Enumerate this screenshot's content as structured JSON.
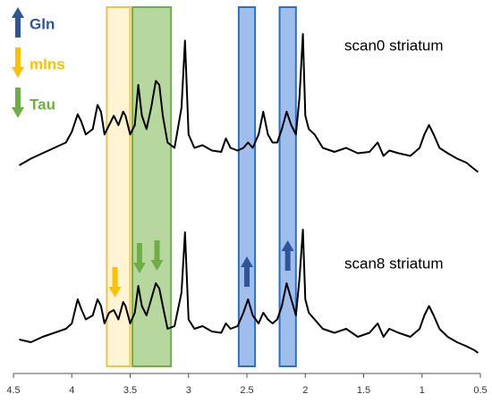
{
  "chart_data": {
    "type": "line",
    "x": [
      4.45,
      4.35,
      4.25,
      4.15,
      4.05,
      4.0,
      3.95,
      3.92,
      3.88,
      3.82,
      3.78,
      3.75,
      3.72,
      3.68,
      3.64,
      3.6,
      3.56,
      3.54,
      3.5,
      3.46,
      3.43,
      3.4,
      3.36,
      3.32,
      3.28,
      3.25,
      3.22,
      3.18,
      3.12,
      3.06,
      3.03,
      3.0,
      2.95,
      2.88,
      2.8,
      2.72,
      2.68,
      2.64,
      2.58,
      2.53,
      2.49,
      2.45,
      2.4,
      2.36,
      2.32,
      2.28,
      2.24,
      2.2,
      2.16,
      2.12,
      2.08,
      2.05,
      2.02,
      2.0,
      1.97,
      1.92,
      1.85,
      1.75,
      1.65,
      1.55,
      1.45,
      1.38,
      1.33,
      1.28,
      1.2,
      1.1,
      1.02,
      0.98,
      0.94,
      0.9,
      0.85,
      0.78,
      0.7,
      0.62,
      0.55,
      0.52
    ],
    "series": [
      {
        "name": "scan0 striatum",
        "color": "#000000",
        "values": [
          10,
          15,
          19,
          23,
          27,
          35,
          48,
          43,
          33,
          37,
          55,
          50,
          33,
          40,
          47,
          40,
          50,
          47,
          33,
          40,
          70,
          47,
          37,
          53,
          73,
          70,
          47,
          27,
          23,
          53,
          103,
          33,
          23,
          25,
          21,
          20,
          30,
          23,
          21,
          23,
          27,
          23,
          33,
          50,
          33,
          27,
          27,
          37,
          50,
          40,
          33,
          60,
          108,
          47,
          37,
          33,
          23,
          20,
          23,
          19,
          20,
          27,
          17,
          21,
          19,
          17,
          23,
          33,
          40,
          33,
          23,
          19,
          15,
          12,
          7,
          5
        ]
      },
      {
        "name": "scan8 striatum",
        "color": "#000000",
        "values": [
          10,
          8,
          12,
          15,
          18,
          22,
          40,
          33,
          25,
          28,
          40,
          35,
          22,
          30,
          32,
          25,
          38,
          35,
          22,
          30,
          50,
          35,
          28,
          40,
          52,
          48,
          35,
          18,
          20,
          45,
          90,
          25,
          18,
          20,
          16,
          15,
          22,
          18,
          20,
          30,
          40,
          28,
          22,
          30,
          25,
          22,
          25,
          35,
          52,
          40,
          28,
          55,
          92,
          40,
          30,
          25,
          18,
          15,
          18,
          12,
          15,
          22,
          12,
          18,
          15,
          12,
          18,
          28,
          35,
          28,
          18,
          12,
          8,
          5,
          2,
          0
        ]
      }
    ],
    "xlim": [
      4.5,
      0.5
    ],
    "xticks": [
      4.5,
      4,
      3.5,
      3,
      2.5,
      2,
      1.5,
      1,
      0.5
    ],
    "regions": [
      {
        "x0": 3.7,
        "x1": 3.5,
        "fill": "#fff2cc",
        "color": "#f5c242"
      },
      {
        "x0": 3.48,
        "x1": 3.15,
        "fill": "#a9d18e",
        "color": "#70ad47"
      },
      {
        "x0": 2.57,
        "x1": 2.43,
        "fill": "#8fb3e8",
        "color": "#2f6fc0"
      },
      {
        "x0": 2.22,
        "x1": 2.08,
        "fill": "#8fb3e8",
        "color": "#2f6fc0"
      }
    ],
    "arrows": [
      {
        "x": 3.63,
        "direction": "down",
        "color": "#ffc000"
      },
      {
        "x": 3.42,
        "direction": "down",
        "color": "#70ad47"
      },
      {
        "x": 3.27,
        "direction": "down",
        "color": "#70ad47"
      },
      {
        "x": 2.5,
        "direction": "up",
        "color": "#2f5597"
      },
      {
        "x": 2.15,
        "direction": "up",
        "color": "#2f5597"
      }
    ],
    "legend": [
      {
        "name": "Gln",
        "direction": "up",
        "color": "#2f5597"
      },
      {
        "name": "mIns",
        "direction": "down",
        "color": "#ffc000"
      },
      {
        "name": "Tau",
        "direction": "down",
        "color": "#70ad47"
      }
    ]
  }
}
